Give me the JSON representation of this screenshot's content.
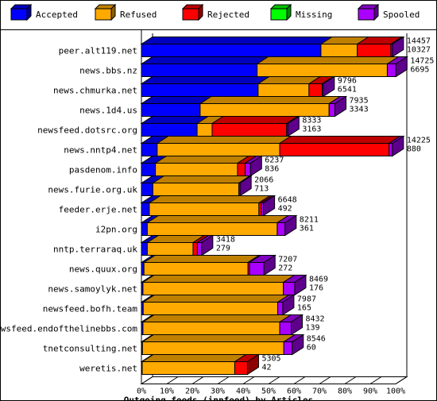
{
  "chart_data": {
    "type": "bar",
    "orientation": "horizontal",
    "stacked": true,
    "normalized_percent": true,
    "title": "",
    "xlabel": "Outgoing feeds (innfeed) by Articles",
    "ylabel": "",
    "xlim": [
      0,
      100
    ],
    "x_ticks": [
      "0%",
      "10%",
      "20%",
      "30%",
      "40%",
      "50%",
      "60%",
      "70%",
      "80%",
      "90%",
      "100%"
    ],
    "legend_position": "top",
    "legend": [
      {
        "name": "Accepted",
        "color": "#0000ff"
      },
      {
        "name": "Refused",
        "color": "#ffaa00"
      },
      {
        "name": "Rejected",
        "color": "#ff0000"
      },
      {
        "name": "Missing",
        "color": "#00ff00"
      },
      {
        "name": "Spooled",
        "color": "#aa00ff"
      }
    ],
    "categories": [
      "peer.alt119.net",
      "news.bbs.nz",
      "news.chmurka.net",
      "news.1d4.us",
      "newsfeed.dotsrc.org",
      "news.nntp4.net",
      "pasdenom.info",
      "news.furie.org.uk",
      "feeder.erje.net",
      "i2pn.org",
      "nntp.terraraq.uk",
      "news.quux.org",
      "news.samoylyk.net",
      "newsfeed.bofh.team",
      "newsfeed.endofthelinebbs.com",
      "tnetconsulting.net",
      "weretis.net"
    ],
    "series": [
      {
        "name": "Accepted",
        "values": [
          70.6,
          45.5,
          45.9,
          23.1,
          21.9,
          6.2,
          5.5,
          4.5,
          3.1,
          2.3,
          2.3,
          1.0,
          0.6,
          0.7,
          0.6,
          0.4,
          0.3
        ]
      },
      {
        "name": "Refused",
        "values": [
          14.3,
          51.2,
          20.0,
          50.7,
          5.9,
          48.2,
          32.3,
          33.8,
          43.1,
          51.1,
          18.0,
          40.9,
          55.2,
          52.9,
          53.8,
          55.6,
          36.4
        ]
      },
      {
        "name": "Rejected",
        "values": [
          13.2,
          0,
          5.2,
          0,
          29.3,
          43.0,
          3.0,
          0,
          1.0,
          0,
          1.7,
          0.6,
          0,
          0,
          0,
          0,
          5.0
        ]
      },
      {
        "name": "Missing",
        "values": [
          0,
          0,
          0,
          0,
          0,
          0,
          0,
          0,
          0,
          0,
          0,
          0,
          0,
          0,
          0,
          0,
          0
        ]
      },
      {
        "name": "Spooled",
        "values": [
          0.6,
          3.4,
          0.4,
          2.3,
          0.5,
          1.3,
          2.1,
          0.5,
          0.8,
          3.1,
          1.7,
          5.7,
          4.5,
          2.0,
          4.5,
          3.3,
          0
        ]
      }
    ],
    "labels_total": [
      "14457",
      "14725",
      "9796",
      "7935",
      "8333",
      "14225",
      "6237",
      "2066",
      "6648",
      "8211",
      "3418",
      "7207",
      "8469",
      "7987",
      "8432",
      "8546",
      "5305"
    ],
    "labels_accepted": [
      "10327",
      "6695",
      "6541",
      "3343",
      "3163",
      "880",
      "836",
      "713",
      "492",
      "361",
      "279",
      "272",
      "176",
      "165",
      "139",
      "60",
      "42"
    ]
  }
}
